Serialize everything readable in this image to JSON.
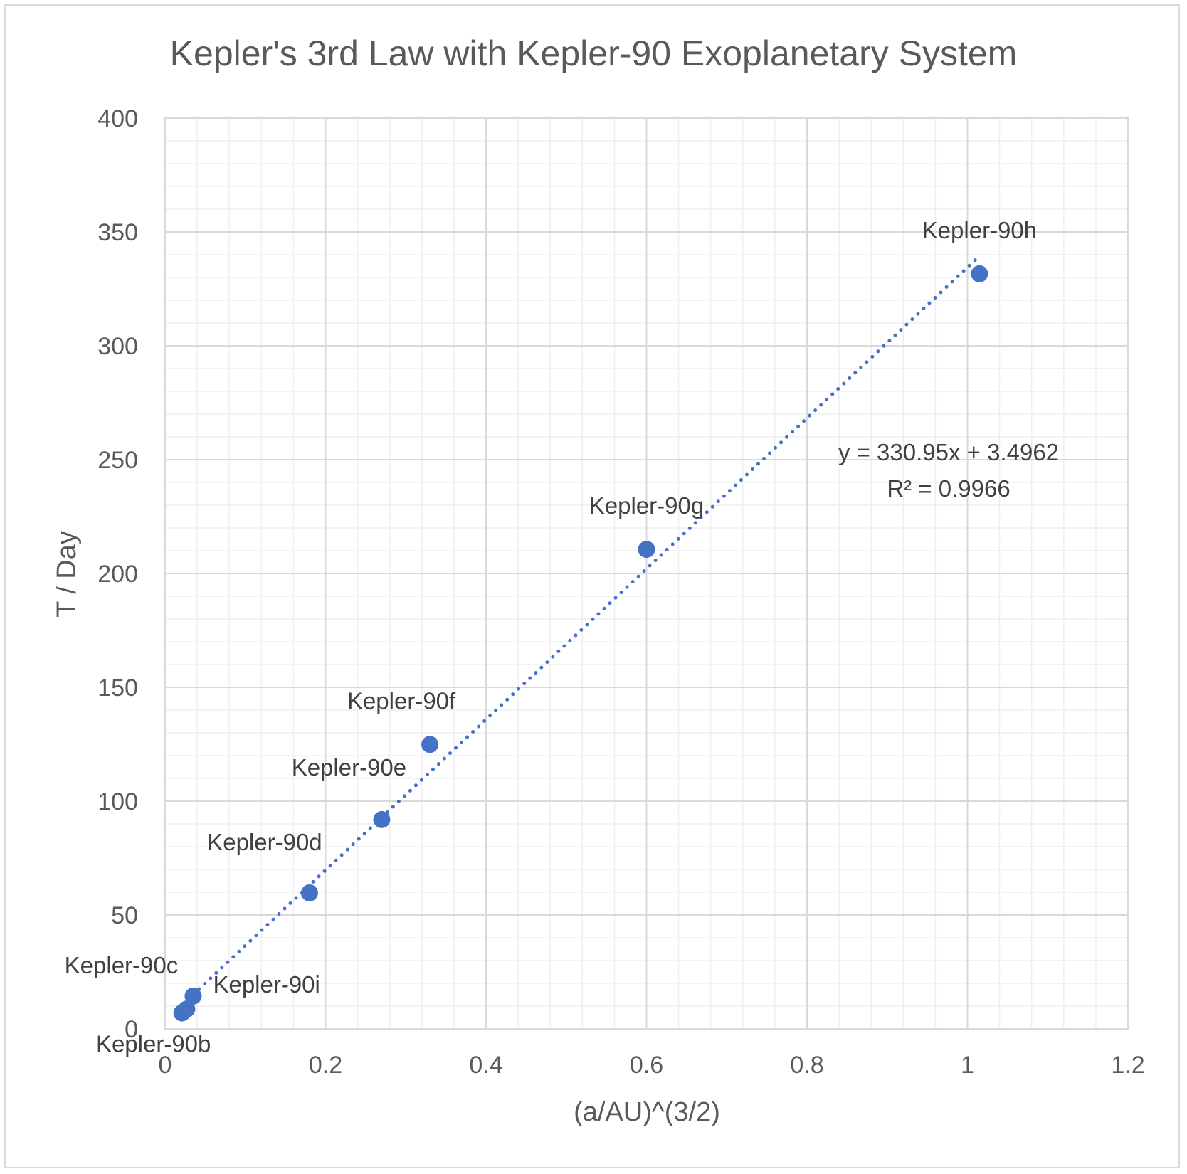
{
  "chart_data": {
    "type": "scatter",
    "title": "Kepler's 3rd Law with Kepler-90 Exoplanetary System",
    "xlabel": "(a/AU)^(3/2)",
    "ylabel": "T / Day",
    "xlim": [
      0,
      1.2
    ],
    "ylim": [
      0,
      400
    ],
    "xticks": [
      "0",
      "0.2",
      "0.4",
      "0.6",
      "0.8",
      "1",
      "1.2"
    ],
    "yticks": [
      "0",
      "50",
      "100",
      "150",
      "200",
      "250",
      "300",
      "350",
      "400"
    ],
    "grid": true,
    "legend": "none",
    "marker_color": "#4472c4",
    "trendline": {
      "type": "linear",
      "style": "dotted",
      "color": "#4472c4",
      "slope": 330.95,
      "intercept": 3.4962,
      "equation": "y = 330.95x + 3.4962",
      "r2": "R² = 0.9966"
    },
    "points": [
      {
        "label": "Kepler-90b",
        "x": 0.021,
        "y": 7.0
      },
      {
        "label": "Kepler-90c",
        "x": 0.027,
        "y": 8.7
      },
      {
        "label": "Kepler-90i",
        "x": 0.035,
        "y": 14.4
      },
      {
        "label": "Kepler-90d",
        "x": 0.18,
        "y": 59.7
      },
      {
        "label": "Kepler-90e",
        "x": 0.27,
        "y": 91.9
      },
      {
        "label": "Kepler-90f",
        "x": 0.33,
        "y": 124.9
      },
      {
        "label": "Kepler-90g",
        "x": 0.6,
        "y": 210.6
      },
      {
        "label": "Kepler-90h",
        "x": 1.015,
        "y": 331.6
      }
    ]
  }
}
